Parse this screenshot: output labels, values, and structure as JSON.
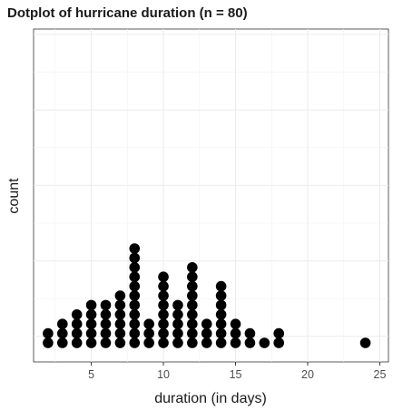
{
  "chart_data": {
    "type": "scatter",
    "title": "Dotplot of hurricane duration (n = 80)",
    "xlabel": "duration (in days)",
    "ylabel": "count",
    "xlim": [
      1,
      25.6
    ],
    "x_ticks": [
      5,
      10,
      15,
      20,
      25
    ],
    "x_minor_ticks": [
      2.5,
      7.5,
      12.5,
      17.5,
      22.5
    ],
    "grid": true,
    "legend": "none",
    "dot_color": "#000000",
    "points": [
      {
        "x": 2,
        "count": 2
      },
      {
        "x": 3,
        "count": 3
      },
      {
        "x": 4,
        "count": 4
      },
      {
        "x": 5,
        "count": 5
      },
      {
        "x": 6,
        "count": 5
      },
      {
        "x": 7,
        "count": 6
      },
      {
        "x": 8,
        "count": 11
      },
      {
        "x": 9,
        "count": 3
      },
      {
        "x": 10,
        "count": 8
      },
      {
        "x": 11,
        "count": 5
      },
      {
        "x": 12,
        "count": 9
      },
      {
        "x": 13,
        "count": 3
      },
      {
        "x": 14,
        "count": 7
      },
      {
        "x": 15,
        "count": 3
      },
      {
        "x": 16,
        "count": 2
      },
      {
        "x": 17,
        "count": 1
      },
      {
        "x": 18,
        "count": 2
      },
      {
        "x": 24,
        "count": 1
      }
    ]
  }
}
